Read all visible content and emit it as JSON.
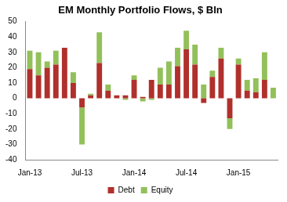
{
  "chart_data": {
    "type": "bar",
    "title": "EM Monthly Portfolio Flows, $ Bln",
    "stacked": true,
    "categories": [
      "Jan-13",
      null,
      null,
      null,
      null,
      null,
      "Jul-13",
      null,
      null,
      null,
      null,
      null,
      "Jan-14",
      null,
      null,
      null,
      null,
      null,
      "Jul-14",
      null,
      null,
      null,
      null,
      null,
      "Jan-15",
      null,
      null,
      null,
      null
    ],
    "series": [
      {
        "name": "Debt",
        "color": "#b0302c",
        "values": [
          19,
          15,
          20,
          22,
          33,
          10,
          -6,
          2,
          23,
          5,
          2,
          2,
          12,
          1,
          12,
          9,
          9,
          21,
          32,
          22,
          -3,
          14,
          26,
          -13,
          22,
          5,
          4,
          12,
          0
        ]
      },
      {
        "name": "Equity",
        "color": "#92c05a",
        "values": [
          12,
          15,
          4,
          9,
          0,
          7,
          -24,
          1,
          20,
          4,
          0,
          -1,
          3,
          -2,
          -1,
          11,
          15,
          12,
          12,
          13,
          9,
          4,
          7,
          -7,
          4,
          7,
          9,
          18,
          7
        ]
      }
    ],
    "ylim": [
      -40,
      50
    ],
    "yticks": [
      -40,
      -30,
      -20,
      -10,
      0,
      10,
      20,
      30,
      40,
      50
    ],
    "grid": false,
    "legend": "bottom"
  }
}
